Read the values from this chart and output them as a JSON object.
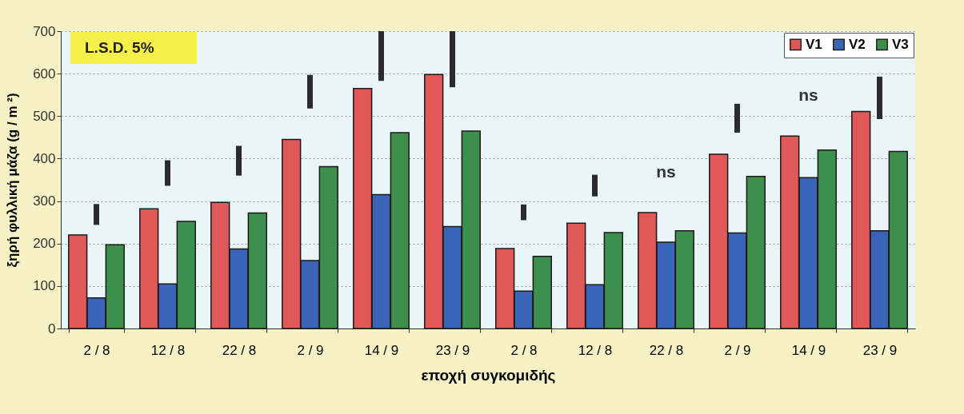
{
  "chart_data": {
    "type": "bar",
    "xlabel": "εποχή συγκομιδής",
    "ylabel": "ξηρή φυλλική μάζα (g / m ²)",
    "categories": [
      "2 / 8",
      "12 / 8",
      "22 / 8",
      "2 / 9",
      "14 / 9",
      "23 / 9",
      "2 / 8",
      "12 / 8",
      "22 / 8",
      "2 / 9",
      "14 / 9",
      "23 / 9"
    ],
    "series": [
      {
        "name": "V1",
        "color": "#e05858",
        "values": [
          220,
          282,
          297,
          445,
          565,
          598,
          188,
          248,
          273,
          410,
          453,
          511
        ]
      },
      {
        "name": "V2",
        "color": "#3b63b8",
        "values": [
          72,
          105,
          187,
          160,
          315,
          240,
          88,
          103,
          203,
          225,
          355,
          230
        ]
      },
      {
        "name": "V3",
        "color": "#3f8f4c",
        "values": [
          197,
          252,
          272,
          381,
          461,
          465,
          170,
          226,
          230,
          358,
          420,
          417
        ]
      },
      {
        "type": "bar",
        "color": "#2b2b2b",
        "base": [
          244,
          336,
          360,
          518,
          583,
          568,
          255,
          311,
          null,
          461,
          null,
          493
        ],
        "values": [
          49,
          60,
          70,
          79,
          117,
          132,
          37,
          51,
          null,
          68,
          null,
          100
        ],
        "value_labels": [
          null,
          null,
          null,
          null,
          null,
          null,
          null,
          null,
          "ns",
          null,
          "ns",
          null
        ]
      }
    ],
    "ylim": [
      0,
      700
    ],
    "yticks": [
      0,
      100,
      200,
      300,
      400,
      500,
      600,
      700
    ],
    "grid": "y",
    "legend": "top right",
    "annotations": [
      "L.S.D. 5%"
    ]
  }
}
